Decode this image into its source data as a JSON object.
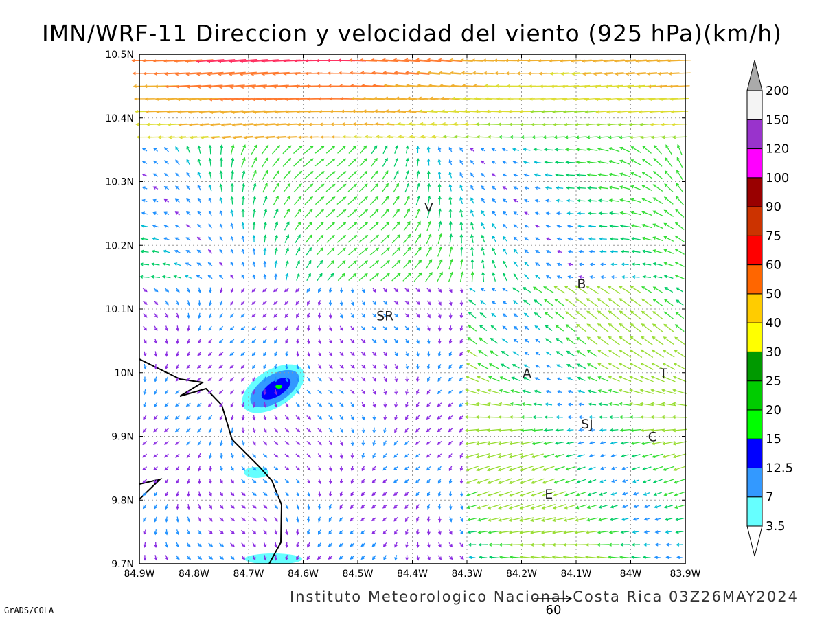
{
  "title": "IMN/WRF-11 Direccion y velocidad del viento (925 hPa)(km/h)",
  "footer": "Instituto Meteorologico Nacional Costa Rica 03Z26MAY2024",
  "credit": "GrADS/COLA",
  "reference_vector_label": "60",
  "x_ticks": [
    "84.9W",
    "84.8W",
    "84.7W",
    "84.6W",
    "84.5W",
    "84.4W",
    "84.3W",
    "84.2W",
    "84.1W",
    "84W",
    "83.9W"
  ],
  "y_ticks": [
    "10.5N",
    "10.4N",
    "10.3N",
    "10.2N",
    "10.1N",
    "10N",
    "9.9N",
    "9.8N",
    "9.7N"
  ],
  "cities": [
    {
      "label": "V",
      "lon": -84.37,
      "lat": 10.26
    },
    {
      "label": "SR",
      "lon": -84.45,
      "lat": 10.09
    },
    {
      "label": "B",
      "lon": -84.09,
      "lat": 10.14
    },
    {
      "label": "A",
      "lon": -84.19,
      "lat": 10.0
    },
    {
      "label": "SJ",
      "lon": -84.08,
      "lat": 9.92
    },
    {
      "label": "C",
      "lon": -83.96,
      "lat": 9.9
    },
    {
      "label": "E",
      "lon": -84.15,
      "lat": 9.81
    },
    {
      "label": "T",
      "lon": -83.94,
      "lat": 10.0
    }
  ],
  "colorbar": {
    "levels": [
      "3.5",
      "7",
      "12.5",
      "15",
      "20",
      "25",
      "30",
      "40",
      "50",
      "60",
      "75",
      "90",
      "100",
      "120",
      "150",
      "200"
    ],
    "colors": [
      "#66ffff",
      "#3399ff",
      "#0000ff",
      "#00ff00",
      "#00cc00",
      "#009900",
      "#ffff00",
      "#ffcc00",
      "#ff6600",
      "#ff0000",
      "#cc3300",
      "#990000",
      "#ff00ff",
      "#9933cc",
      "#f4f4f4"
    ],
    "arrow_low": "#ffffff",
    "arrow_high": "#aaaaaa"
  },
  "map": {
    "lon_range": [
      -84.9,
      -83.9
    ],
    "lat_range": [
      9.7,
      10.5
    ],
    "grid": "dotted",
    "vector_grid_step_deg": 0.02,
    "reference_speed_kmh": 60
  }
}
